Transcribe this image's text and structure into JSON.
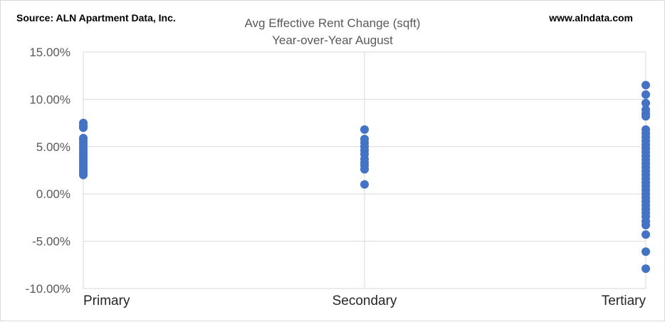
{
  "header": {
    "source": "Source: ALN Apartment Data, Inc.",
    "website": "www.alndata.com"
  },
  "chart_data": {
    "type": "scatter",
    "title": "Avg Effective Rent Change (sqft)",
    "subtitle": "Year-over-Year August",
    "categories": [
      "Primary",
      "Secondary",
      "Tertiary"
    ],
    "ylim": [
      -10,
      15
    ],
    "yticks": [
      -10,
      -5,
      0,
      5,
      10,
      15
    ],
    "ytick_labels": [
      "-10.00%",
      "-5.00%",
      "0.00%",
      "5.00%",
      "10.00%",
      "15.00%"
    ],
    "grid": "both",
    "legend": "none",
    "marker_color": "#4472C4",
    "series": [
      {
        "category": "Primary",
        "values": [
          7.5,
          7.2,
          7.0,
          5.9,
          5.6,
          5.3,
          5.0,
          4.7,
          4.4,
          4.1,
          3.8,
          3.5,
          3.2,
          2.9,
          2.6,
          2.3,
          2.0
        ]
      },
      {
        "category": "Secondary",
        "values": [
          6.8,
          5.8,
          5.4,
          5.0,
          4.6,
          4.2,
          3.7,
          3.3,
          3.0,
          2.6,
          1.0
        ]
      },
      {
        "category": "Tertiary",
        "values": [
          11.5,
          10.5,
          9.6,
          8.9,
          8.5,
          8.2,
          6.8,
          6.4,
          6.0,
          5.6,
          5.2,
          4.8,
          4.4,
          4.0,
          3.6,
          3.2,
          2.8,
          2.4,
          2.0,
          1.6,
          1.2,
          0.8,
          0.4,
          0.0,
          -0.4,
          -0.8,
          -1.2,
          -1.6,
          -2.0,
          -2.4,
          -2.9,
          -3.3,
          -4.3,
          -6.1,
          -7.9
        ]
      }
    ]
  }
}
